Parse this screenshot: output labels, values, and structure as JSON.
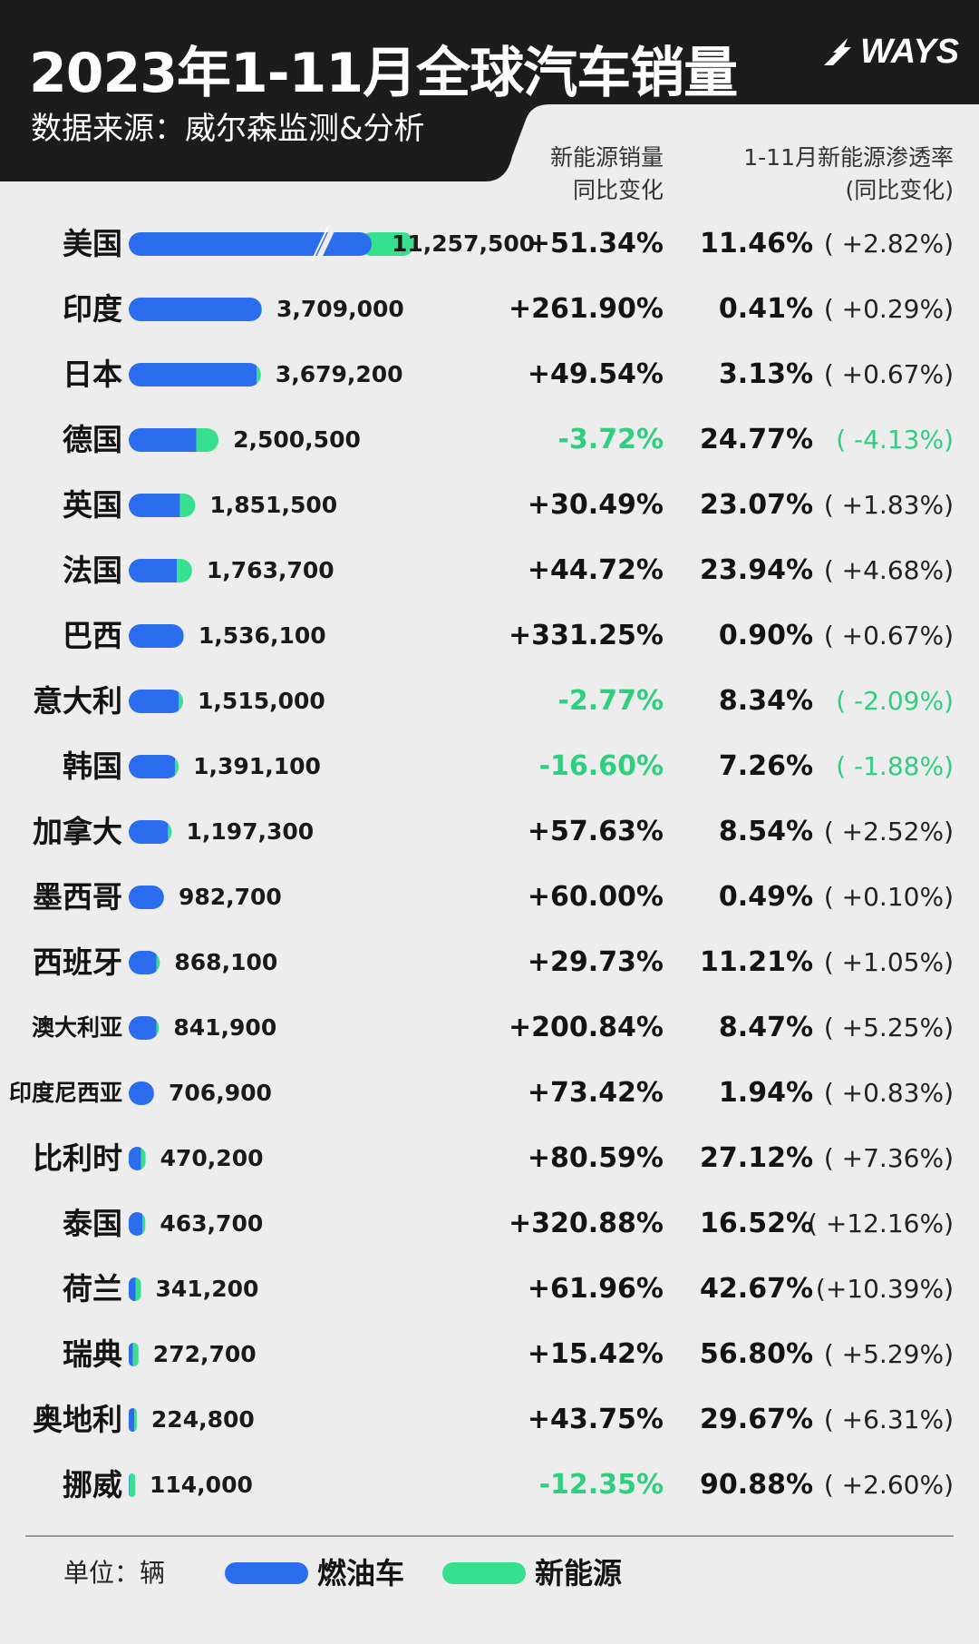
{
  "header": {
    "title": "2023年1-11月全球汽车销量",
    "subtitle": "数据来源：威尔森监测&分析",
    "logo_text": "WAYS",
    "col_yoy_line1": "新能源销量",
    "col_yoy_line2": "同比变化",
    "col_pen_line1": "1-11月新能源渗透率",
    "col_pen_line2": "(同比变化)"
  },
  "colors": {
    "fuel": "#2c6df0",
    "nev": "#37e08e",
    "negative": "#2fcf80",
    "header_bg": "#1c1c1c"
  },
  "chart_data": {
    "type": "bar",
    "title": "2023年1-11月全球汽车销量",
    "unit": "辆",
    "series": [
      {
        "name": "燃油车"
      },
      {
        "name": "新能源"
      }
    ],
    "categories": [
      "美国",
      "印度",
      "日本",
      "德国",
      "英国",
      "法国",
      "巴西",
      "意大利",
      "韩国",
      "加拿大",
      "墨西哥",
      "西班牙",
      "澳大利亚",
      "印度尼西亚",
      "比利时",
      "泰国",
      "荷兰",
      "瑞典",
      "奥地利",
      "挪威"
    ],
    "totals": [
      11257500,
      3709000,
      3679200,
      2500500,
      1851500,
      1763700,
      1536100,
      1515000,
      1391100,
      1197300,
      982700,
      868100,
      841900,
      706900,
      470200,
      463700,
      341200,
      272700,
      224800,
      114000
    ],
    "total_labels": [
      "11,257,500",
      "3,709,000",
      "3,679,200",
      "2,500,500",
      "1,851,500",
      "1,763,700",
      "1,536,100",
      "1,515,000",
      "1,391,100",
      "1,197,300",
      "982,700",
      "868,100",
      "841,900",
      "706,900",
      "470,200",
      "463,700",
      "341,200",
      "272,700",
      "224,800",
      "114,000"
    ],
    "nev_penetration": [
      11.46,
      0.41,
      3.13,
      24.77,
      23.07,
      23.94,
      0.9,
      8.34,
      7.26,
      8.54,
      0.49,
      11.21,
      8.47,
      1.94,
      27.12,
      16.52,
      42.67,
      56.8,
      29.67,
      90.88
    ],
    "nev_yoy_labels": [
      "+51.34%",
      "+261.90%",
      "+49.54%",
      "-3.72%",
      "+30.49%",
      "+44.72%",
      "+331.25%",
      "-2.77%",
      "-16.60%",
      "+57.63%",
      "+60.00%",
      "+29.73%",
      "+200.84%",
      "+73.42%",
      "+80.59%",
      "+320.88%",
      "+61.96%",
      "+15.42%",
      "+43.75%",
      "-12.35%"
    ],
    "penetration_labels": [
      "11.46%",
      "0.41%",
      "3.13%",
      "24.77%",
      "23.07%",
      "23.94%",
      "0.90%",
      "8.34%",
      "7.26%",
      "8.54%",
      "0.49%",
      "11.21%",
      "8.47%",
      "1.94%",
      "27.12%",
      "16.52%",
      "42.67%",
      "56.80%",
      "29.67%",
      "90.88%"
    ],
    "penetration_change_labels": [
      "( +2.82%)",
      "( +0.29%)",
      "( +0.67%)",
      "( -4.13%)",
      "( +1.83%)",
      "( +4.68%)",
      "( +0.67%)",
      "( -2.09%)",
      "( -1.88%)",
      "( +2.52%)",
      "( +0.10%)",
      "( +1.05%)",
      "( +5.25%)",
      "( +0.83%)",
      "( +7.36%)",
      "( +12.16%)",
      "(+10.39%)",
      "( +5.29%)",
      "( +6.31%)",
      "( +2.60%)"
    ],
    "axis_break": "美国"
  },
  "footer": {
    "unit_label": "单位：辆",
    "legend_fuel": "燃油车",
    "legend_nev": "新能源"
  }
}
